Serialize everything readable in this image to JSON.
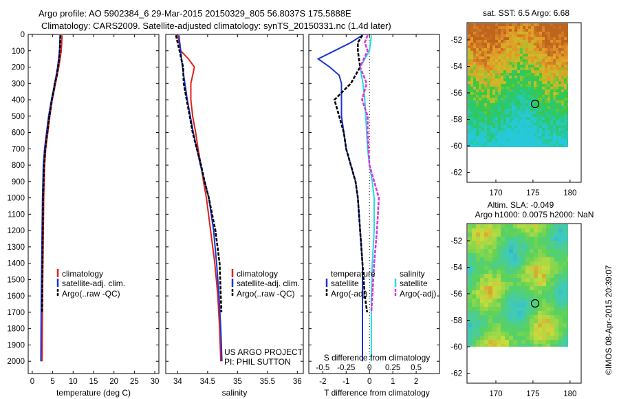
{
  "header": {
    "line1": "Argo profile: AO 5902384_6 29-Mar-2015 20150329_805 56.8037S 175.5888E",
    "line2": "Climatology: CARS2009. Satellite-adjusted climatology: synTS_20150331.nc (1.4d later)"
  },
  "watermark": "©IMOS 08-Apr-2015 20:39:07",
  "project": {
    "line1": "US ARGO PROJECT",
    "line2": "PI: PHIL SUTTON"
  },
  "colors": {
    "climatology": "#e0201a",
    "satellite": "#1a33d6",
    "argo": "#000000",
    "sal_sat": "#22dde6",
    "sal_argo": "#e030e0"
  },
  "chart_data": [
    {
      "type": "line",
      "name": "temperature profile",
      "xlabel": "temperature (deg C)",
      "xlim": [
        -1,
        31
      ],
      "xticks": [
        "0",
        "5",
        "10",
        "15",
        "20",
        "25",
        "30"
      ],
      "ylim": [
        0,
        2075
      ],
      "yticks": [
        "0",
        "100",
        "200",
        "300",
        "400",
        "500",
        "600",
        "700",
        "800",
        "900",
        "1000",
        "1100",
        "1200",
        "1300",
        "1400",
        "1500",
        "1600",
        "1700",
        "1800",
        "1900",
        "2000"
      ],
      "legend": [
        "climatology",
        "satellite-adj. clim.",
        "Argo(..raw -QC)"
      ],
      "series": [
        {
          "name": "climatology",
          "color": "#e0201a",
          "depth": [
            5,
            100,
            200,
            300,
            400,
            500,
            600,
            700,
            800,
            900,
            1000,
            1200,
            1400,
            1600,
            1800,
            2000
          ],
          "values": [
            7.3,
            7.1,
            6.5,
            5.7,
            4.9,
            4.3,
            3.8,
            3.3,
            3.0,
            2.9,
            2.8,
            2.7,
            2.6,
            2.5,
            2.45,
            2.4
          ]
        },
        {
          "name": "satellite-adj. clim.",
          "color": "#1a33d6",
          "depth": [
            5,
            100,
            200,
            300,
            400,
            500,
            600,
            700,
            800,
            900,
            1000,
            1200,
            1400,
            1600,
            1800,
            2000
          ],
          "values": [
            6.8,
            6.7,
            6.2,
            5.5,
            4.7,
            4.0,
            3.5,
            3.0,
            2.7,
            2.6,
            2.5,
            2.4,
            2.3,
            2.2,
            2.15,
            2.1
          ]
        },
        {
          "name": "Argo(..raw -QC)",
          "color": "#000000",
          "depth": [
            5,
            50,
            100,
            150,
            200,
            250,
            300,
            350,
            400,
            450,
            500,
            550,
            600,
            650,
            700,
            800,
            900,
            1000,
            1200,
            1400,
            1600,
            1700
          ],
          "values": [
            6.9,
            6.85,
            6.7,
            6.6,
            6.3,
            6.0,
            5.5,
            5.2,
            4.8,
            4.5,
            4.2,
            3.9,
            3.7,
            3.4,
            3.2,
            2.9,
            2.75,
            2.65,
            2.55,
            2.5,
            2.45,
            2.4
          ]
        }
      ]
    },
    {
      "type": "line",
      "name": "salinity profile",
      "xlabel": "salinity",
      "xlim": [
        33.8,
        36.1
      ],
      "xticks": [
        "34",
        "34.5",
        "35",
        "35.5",
        "36"
      ],
      "ylim": [
        0,
        2075
      ],
      "legend": [
        "climatology",
        "satellite-adj. clim.",
        "Argo(..raw -QC)"
      ],
      "series": [
        {
          "name": "climatology",
          "color": "#e0201a",
          "depth": [
            5,
            100,
            150,
            200,
            250,
            300,
            400,
            500,
            600,
            700,
            800,
            900,
            1000,
            1200,
            1400,
            1600,
            1800,
            2000
          ],
          "values": [
            34.0,
            34.05,
            34.18,
            34.28,
            34.25,
            34.22,
            34.22,
            34.25,
            34.3,
            34.34,
            34.39,
            34.43,
            34.48,
            34.55,
            34.62,
            34.67,
            34.7,
            34.72
          ]
        },
        {
          "name": "satellite-adj. clim.",
          "color": "#1a33d6",
          "depth": [
            5,
            100,
            200,
            300,
            400,
            500,
            600,
            700,
            800,
            900,
            1000,
            1200,
            1400,
            1600,
            1800,
            2000
          ],
          "values": [
            34.02,
            34.05,
            34.08,
            34.12,
            34.16,
            34.21,
            34.26,
            34.32,
            34.38,
            34.45,
            34.52,
            34.6,
            34.65,
            34.69,
            34.72,
            34.74
          ]
        },
        {
          "name": "Argo(..raw -QC)",
          "color": "#000000",
          "depth": [
            5,
            100,
            200,
            300,
            400,
            500,
            600,
            700,
            800,
            900,
            1000,
            1200,
            1400,
            1600,
            1700
          ],
          "values": [
            33.97,
            34.03,
            34.09,
            34.1,
            34.15,
            34.2,
            34.25,
            34.32,
            34.39,
            34.45,
            34.52,
            34.63,
            34.7,
            34.72,
            34.73
          ]
        }
      ]
    },
    {
      "type": "line",
      "name": "difference from climatology",
      "xlabel": "T difference from climatology",
      "xlabel_top": "S difference from climatology",
      "xlim": [
        -2.6,
        3.0
      ],
      "xticks": [
        "-2",
        "-1",
        "0",
        "1",
        "2"
      ],
      "xticks_sal": [
        "-0.5",
        "-0.25",
        "0",
        "0.25",
        "0.5"
      ],
      "legend_headers": [
        "temperature",
        "salinity"
      ],
      "legend": [
        "satellite",
        "Argo(-adj)",
        "satellite",
        "Argo(-adj)"
      ],
      "series": [
        {
          "name": "temperature satellite",
          "color": "#1a33d6",
          "depth": [
            5,
            50,
            100,
            150,
            200,
            250,
            300,
            400,
            500,
            600,
            700,
            800,
            900,
            1000,
            1200,
            1400,
            1600,
            1800,
            2000
          ],
          "values": [
            -0.3,
            -0.8,
            -1.5,
            -2.2,
            -1.7,
            -1.3,
            -1.2,
            -1.2,
            -1.2,
            -1.1,
            -1.0,
            -0.8,
            -0.6,
            -0.5,
            -0.4,
            -0.3,
            -0.3,
            -0.3,
            -0.3
          ]
        },
        {
          "name": "temperature Argo(-adj)",
          "color": "#000000",
          "depth": [
            5,
            50,
            100,
            200,
            300,
            400,
            450,
            500,
            600,
            700,
            800,
            900,
            1000,
            1200,
            1400,
            1600,
            1700
          ],
          "values": [
            -0.3,
            -0.5,
            -0.5,
            -0.4,
            -0.8,
            -1.5,
            -1.4,
            -1.3,
            -1.1,
            -1.0,
            -0.8,
            -0.6,
            -0.5,
            -0.4,
            -0.3,
            -0.2,
            -0.1
          ]
        },
        {
          "name": "salinity satellite",
          "color": "#22dde6",
          "depth": [
            5,
            100,
            200,
            300,
            400,
            500,
            600,
            700,
            800,
            900,
            1000,
            1200,
            1400,
            1600,
            1800,
            2000
          ],
          "values": [
            0.02,
            0.0,
            -0.1,
            -0.07,
            -0.05,
            -0.04,
            -0.03,
            -0.02,
            0.0,
            0.03,
            0.05,
            0.05,
            0.03,
            0.02,
            0.02,
            0.02
          ]
        },
        {
          "name": "salinity Argo(-adj)",
          "color": "#e030e0",
          "depth": [
            5,
            50,
            100,
            200,
            300,
            400,
            500,
            600,
            700,
            800,
            900,
            1000,
            1200,
            1400,
            1600,
            1700
          ],
          "values": [
            -0.02,
            -0.05,
            -0.02,
            -0.1,
            -0.03,
            -0.08,
            -0.02,
            -0.02,
            -0.01,
            0.0,
            0.05,
            0.1,
            0.08,
            0.05,
            0.03,
            0.02
          ]
        }
      ]
    },
    {
      "type": "heatmap",
      "name": "sat SST map",
      "title": "sat. SST: 6.5 Argo: 6.68",
      "xticks": [
        "170",
        "175",
        "180"
      ],
      "yticks": [
        "-52",
        "-54",
        "-56",
        "-58",
        "-60",
        "-62"
      ],
      "argo_marker": [
        175.59,
        -56.8
      ]
    },
    {
      "type": "heatmap",
      "name": "altimetry SLA map",
      "title": "Altim. SLA: -0.049",
      "subtitle": "Argo h1000: 0.0075 h2000: NaN",
      "xticks": [
        "170",
        "175",
        "180"
      ],
      "yticks": [
        "-52",
        "-54",
        "-56",
        "-58",
        "-60",
        "-62"
      ],
      "argo_marker": [
        175.59,
        -56.8
      ]
    }
  ]
}
